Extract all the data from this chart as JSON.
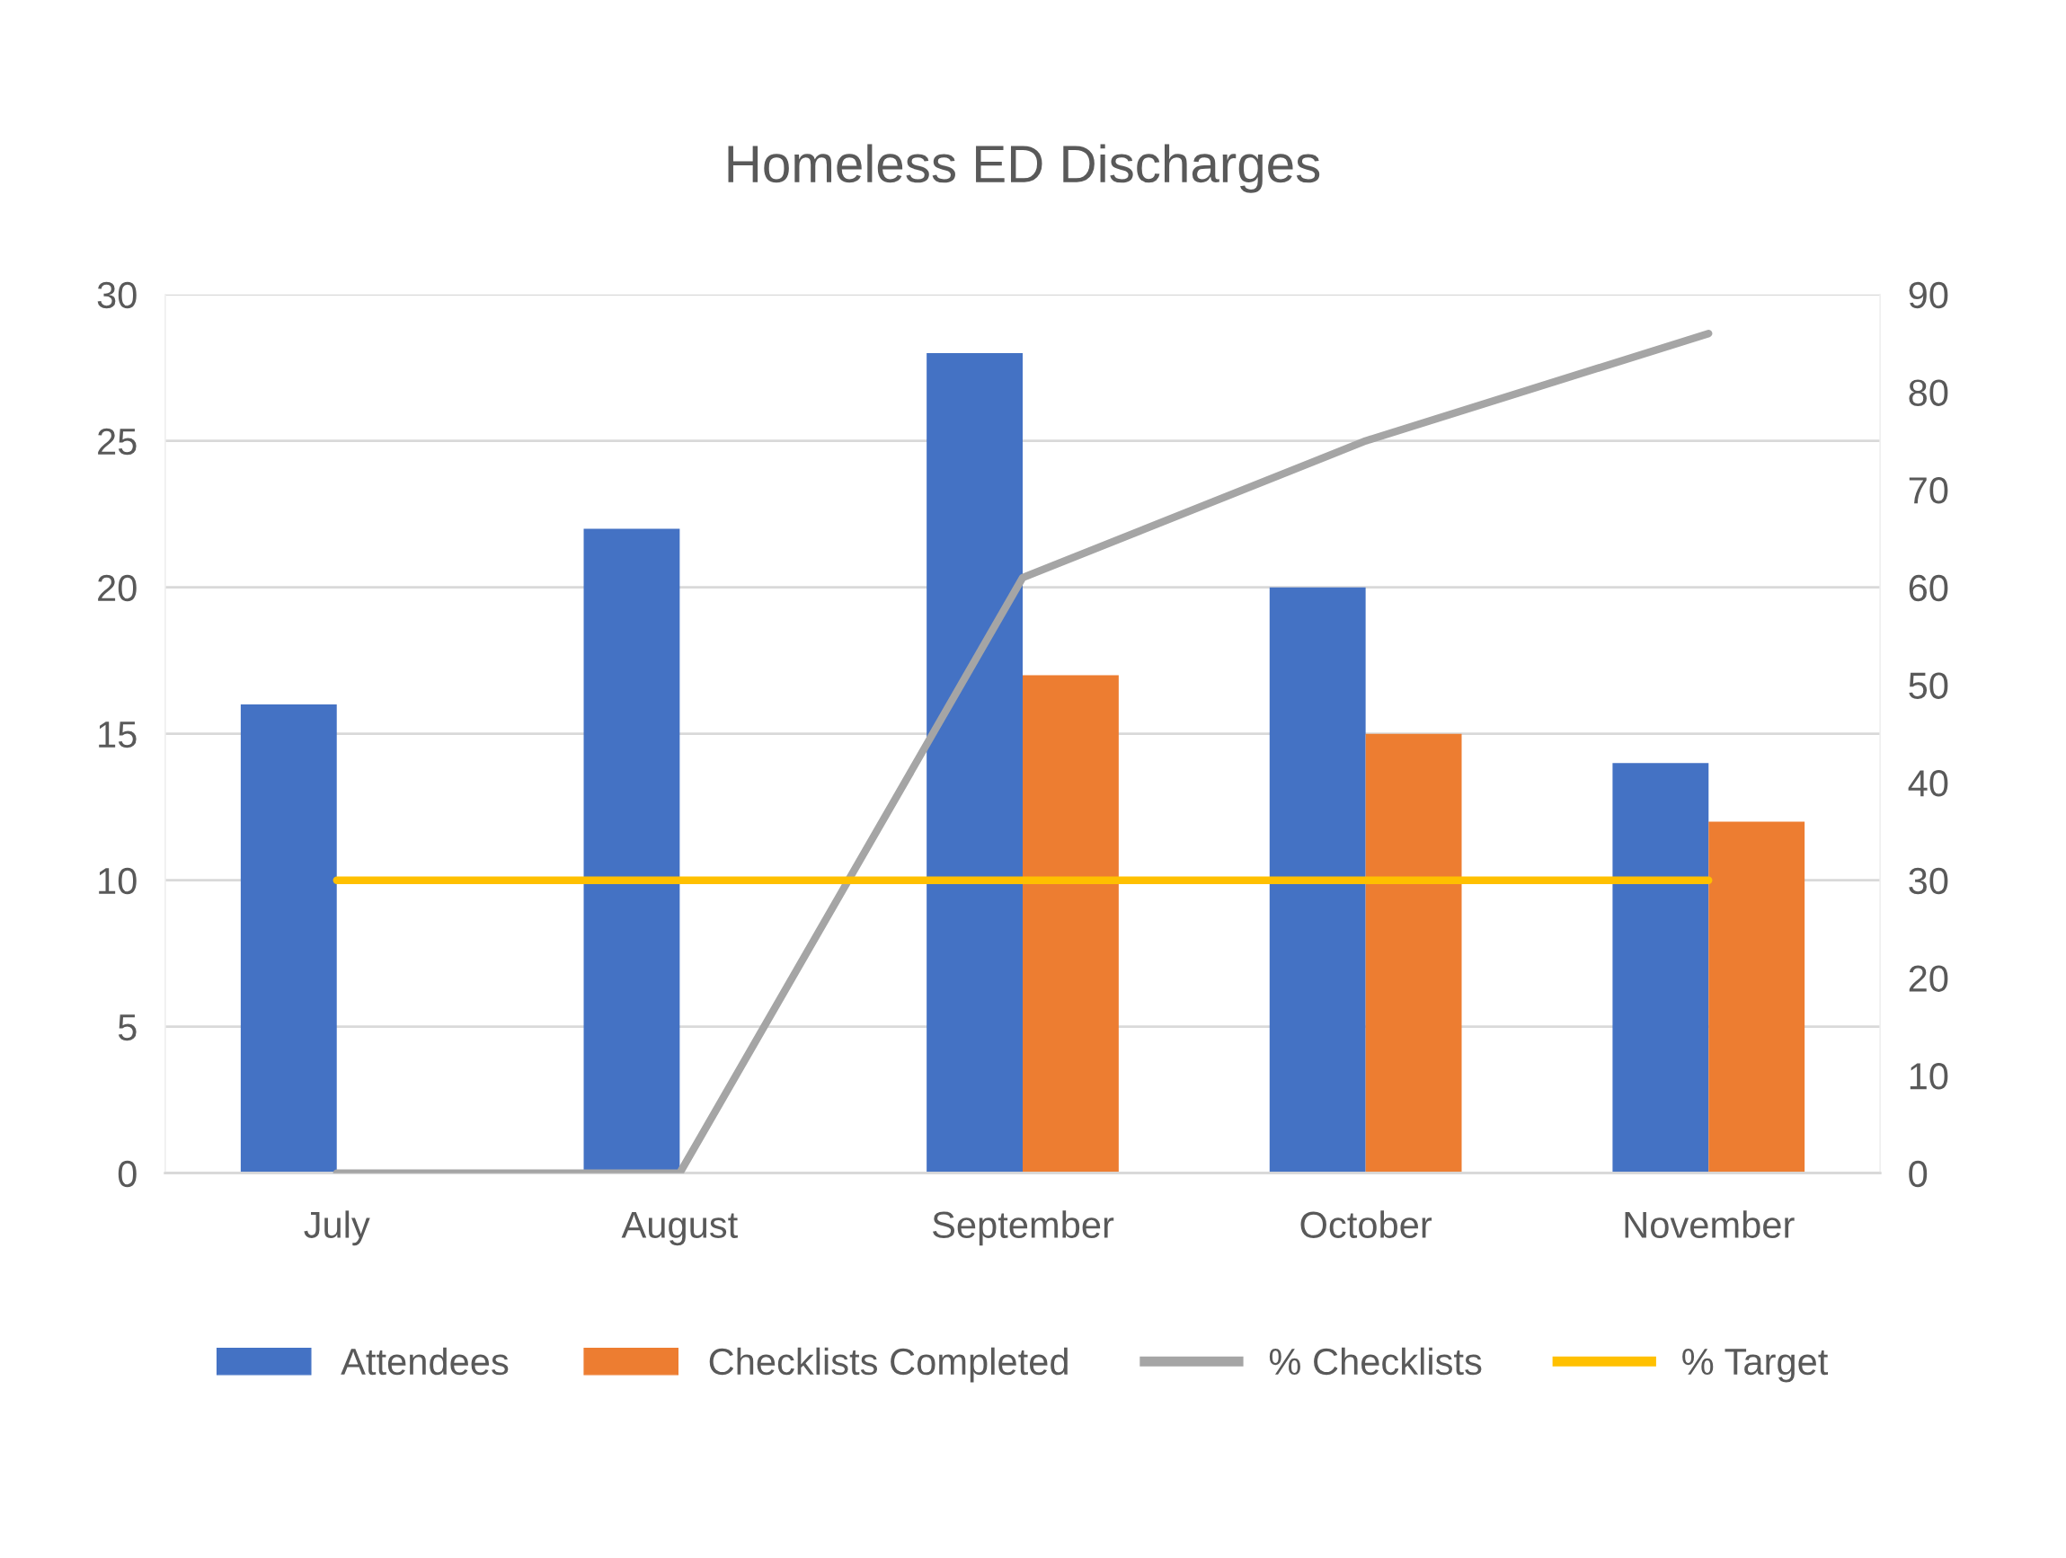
{
  "chart_data": {
    "type": "bar",
    "title": "Homeless ED Discharges",
    "categories": [
      "July",
      "August",
      "September",
      "October",
      "November"
    ],
    "series": [
      {
        "name": "Attendees",
        "color": "#4472c4",
        "values": [
          16,
          22,
          28,
          20,
          14
        ]
      },
      {
        "name": "Checklists Completed",
        "color": "#ed7d31",
        "values": [
          null,
          null,
          17,
          15,
          12
        ]
      },
      {
        "name": "% Checklists",
        "type": "line",
        "axis": "y2",
        "color": "#a5a5a5",
        "values": [
          0,
          0,
          61,
          75,
          86
        ]
      },
      {
        "name": "% Target",
        "type": "line",
        "axis": "y2",
        "color": "#ffc000",
        "values": [
          30,
          30,
          30,
          30,
          30
        ]
      }
    ],
    "ylim": [
      0,
      30
    ],
    "yticks": [
      0,
      5,
      10,
      15,
      20,
      25,
      30
    ],
    "y2lim": [
      0,
      90
    ],
    "y2ticks": [
      0,
      10,
      20,
      30,
      40,
      50,
      60,
      70,
      80,
      90
    ],
    "grid": "y",
    "legend": "bottom",
    "marker": "none",
    "line_style": "solid"
  }
}
